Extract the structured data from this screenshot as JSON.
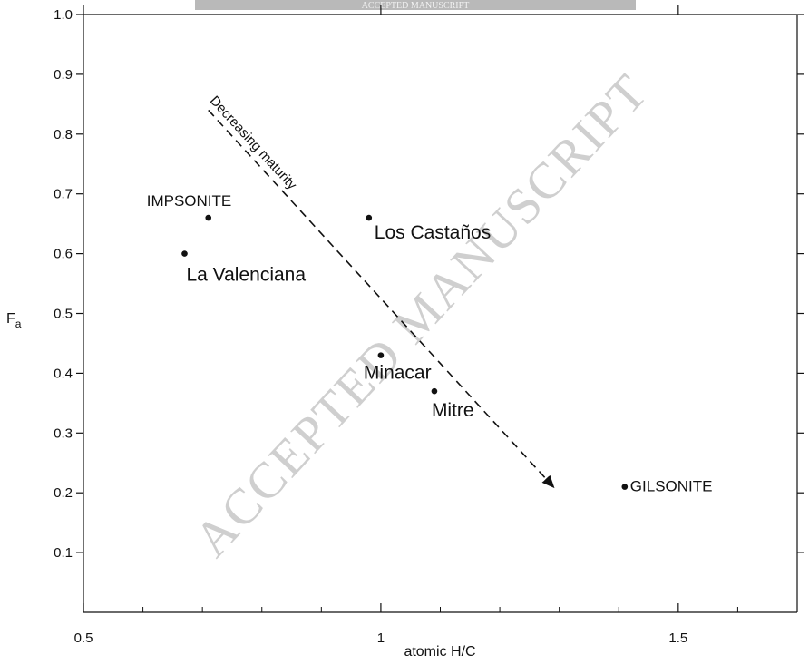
{
  "banner": {
    "text": "ACCEPTED MANUSCRIPT"
  },
  "watermark": {
    "text": "ACCEPTED MANUSCRIPT"
  },
  "chart_data": {
    "type": "scatter",
    "xlabel": "atomic H/C",
    "ylabel": "F",
    "ylabel_subscript": "a",
    "xlim": [
      0.5,
      1.7
    ],
    "ylim": [
      0.0,
      1.0
    ],
    "x_ticks": [
      {
        "value": 0.5,
        "label": "0.5"
      },
      {
        "value": 1.0,
        "label": "1"
      },
      {
        "value": 1.5,
        "label": "1.5"
      }
    ],
    "x_minor_ticks": [
      0.6,
      0.7,
      0.8,
      0.9,
      1.1,
      1.2,
      1.3,
      1.4,
      1.6
    ],
    "y_ticks": [
      {
        "value": 0.1,
        "label": "0.1"
      },
      {
        "value": 0.2,
        "label": "0.2"
      },
      {
        "value": 0.3,
        "label": "0.3"
      },
      {
        "value": 0.4,
        "label": "0.4"
      },
      {
        "value": 0.5,
        "label": "0.5"
      },
      {
        "value": 0.6,
        "label": "0.6"
      },
      {
        "value": 0.7,
        "label": "0.7"
      },
      {
        "value": 0.8,
        "label": "0.8"
      },
      {
        "value": 0.9,
        "label": "0.9"
      },
      {
        "value": 1.0,
        "label": "1.0"
      }
    ],
    "grid": false,
    "points": [
      {
        "label": "IMPSONITE",
        "x": 0.71,
        "y": 0.66
      },
      {
        "label": "La Valenciana",
        "x": 0.67,
        "y": 0.6
      },
      {
        "label": "Los Castaños",
        "x": 0.98,
        "y": 0.66
      },
      {
        "label": "Minacar",
        "x": 1.0,
        "y": 0.43
      },
      {
        "label": "Mitre",
        "x": 1.09,
        "y": 0.37
      },
      {
        "label": "GILSONITE",
        "x": 1.41,
        "y": 0.21
      }
    ],
    "annotations": [
      {
        "text": "Decreasing maturity",
        "type": "dashed-arrow",
        "from": [
          0.71,
          0.84
        ],
        "to": [
          1.29,
          0.21
        ]
      }
    ]
  }
}
